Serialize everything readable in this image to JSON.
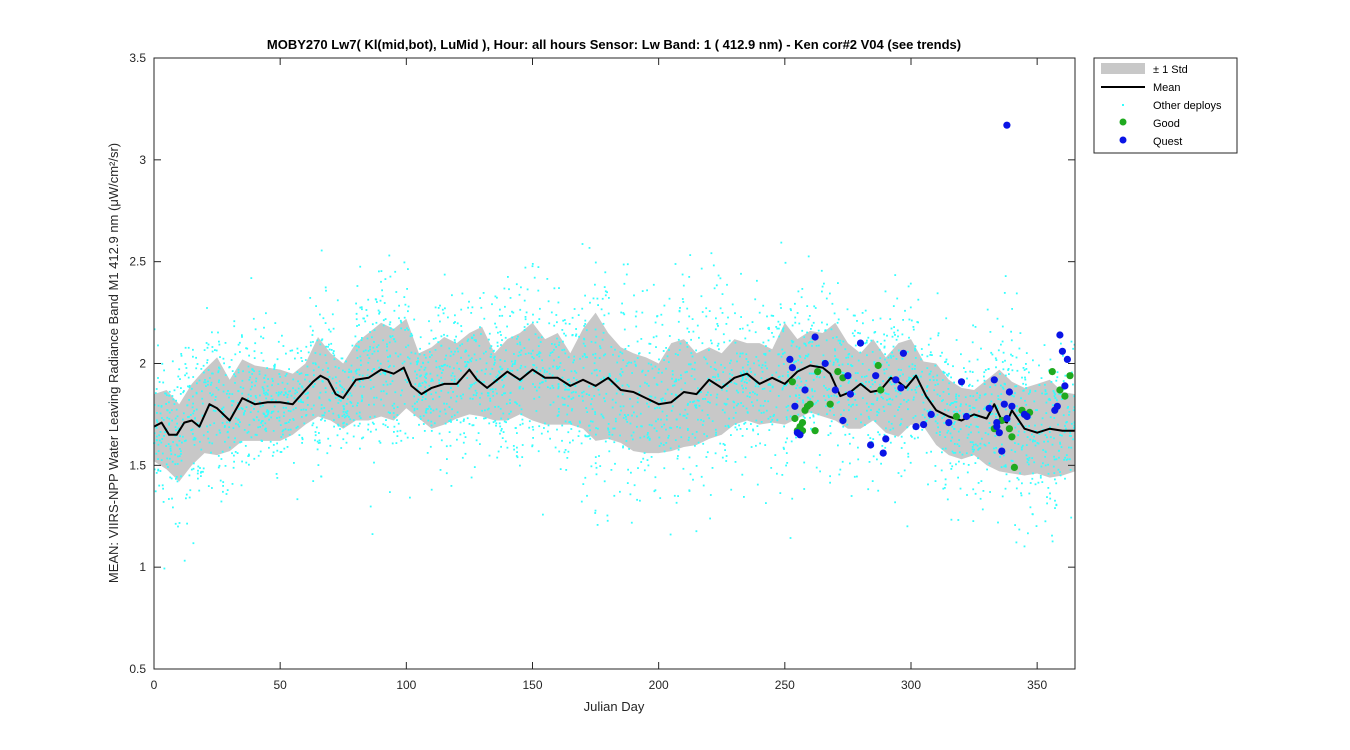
{
  "chart_data": {
    "type": "scatter",
    "title": "MOBY270   Lw7( Kl(mid,bot), LuMid ),   Hour: all hours  Sensor: Lw Band: 1 ( 412.9 nm)  - Ken cor#2 V04 (see trends)",
    "xlabel": "Julian Day",
    "ylabel": "MEAN: VIIRS-NPP Water Leaving Radiance Band M1 412.9 nm (μW/cm²/sr)",
    "xlim": [
      0,
      365
    ],
    "ylim": [
      0.5,
      3.5
    ],
    "x_ticks": [
      0,
      50,
      100,
      150,
      200,
      250,
      300,
      350
    ],
    "y_ticks": [
      0.5,
      1,
      1.5,
      2,
      2.5,
      3,
      3.5
    ],
    "y_tick_labels": [
      "0.5",
      "1",
      "1.5",
      "2",
      "2.5",
      "3",
      "3.5"
    ],
    "grid": false,
    "legend_position": "outside-top-right",
    "legend": [
      "± 1 Std",
      "Mean",
      "Other deploys",
      "Good",
      "Quest"
    ],
    "colors": {
      "std_band": "#c8c8c8",
      "mean": "#000000",
      "other": "#33ffff",
      "good": "#1faa1f",
      "quest": "#0a14e6"
    },
    "mean_curve": {
      "x": [
        0,
        3,
        6,
        9,
        12,
        15,
        18,
        22,
        25,
        30,
        35,
        40,
        45,
        50,
        55,
        60,
        63,
        66,
        69,
        72,
        75,
        80,
        85,
        90,
        95,
        99,
        102,
        106,
        110,
        115,
        120,
        125,
        128,
        132,
        136,
        140,
        145,
        150,
        155,
        160,
        165,
        170,
        175,
        180,
        185,
        190,
        195,
        200,
        205,
        210,
        215,
        220,
        225,
        230,
        235,
        240,
        245,
        250,
        255,
        260,
        265,
        268,
        272,
        276,
        280,
        284,
        288,
        292,
        295,
        298,
        302,
        306,
        310,
        315,
        320,
        325,
        330,
        333,
        336,
        338,
        340,
        345,
        350,
        355,
        360,
        365
      ],
      "y": [
        1.69,
        1.71,
        1.65,
        1.65,
        1.71,
        1.72,
        1.69,
        1.8,
        1.78,
        1.72,
        1.83,
        1.8,
        1.81,
        1.81,
        1.8,
        1.87,
        1.91,
        1.94,
        1.92,
        1.85,
        1.83,
        1.92,
        1.93,
        1.97,
        1.95,
        1.98,
        1.89,
        1.85,
        1.88,
        1.9,
        1.9,
        1.97,
        1.92,
        1.88,
        1.92,
        1.96,
        1.92,
        1.97,
        1.93,
        1.93,
        1.89,
        1.92,
        1.89,
        1.93,
        1.87,
        1.86,
        1.83,
        1.8,
        1.81,
        1.86,
        1.85,
        1.92,
        1.88,
        1.93,
        1.95,
        1.9,
        1.93,
        1.9,
        1.96,
        1.99,
        1.98,
        1.95,
        1.84,
        1.86,
        1.9,
        1.86,
        1.87,
        1.93,
        1.91,
        1.88,
        1.94,
        1.84,
        1.77,
        1.74,
        1.72,
        1.75,
        1.73,
        1.8,
        1.72,
        1.71,
        1.77,
        1.68,
        1.66,
        1.68,
        1.67,
        1.67
      ]
    },
    "std_band": {
      "x": [
        0,
        5,
        10,
        15,
        20,
        25,
        30,
        35,
        40,
        45,
        50,
        55,
        60,
        65,
        70,
        75,
        80,
        85,
        90,
        95,
        100,
        105,
        110,
        115,
        120,
        125,
        130,
        135,
        140,
        145,
        150,
        155,
        160,
        165,
        170,
        175,
        180,
        185,
        190,
        195,
        200,
        205,
        210,
        215,
        220,
        225,
        230,
        235,
        240,
        245,
        250,
        255,
        260,
        265,
        270,
        275,
        280,
        285,
        290,
        295,
        300,
        305,
        310,
        315,
        320,
        325,
        330,
        335,
        340,
        345,
        350,
        355,
        360,
        365
      ],
      "upper": [
        1.85,
        1.87,
        1.8,
        1.9,
        1.97,
        2.03,
        1.92,
        2.02,
        1.99,
        1.98,
        1.97,
        1.95,
        2.0,
        2.13,
        2.05,
        2.0,
        2.1,
        2.15,
        2.2,
        2.17,
        2.22,
        2.05,
        2.08,
        2.13,
        2.1,
        2.15,
        2.18,
        2.05,
        2.12,
        2.15,
        2.2,
        2.12,
        2.15,
        2.05,
        2.17,
        2.25,
        2.15,
        2.08,
        2.05,
        2.03,
        2.0,
        2.1,
        2.12,
        2.05,
        2.08,
        2.05,
        2.12,
        2.1,
        2.1,
        2.07,
        2.2,
        2.12,
        2.16,
        2.15,
        2.2,
        2.1,
        2.05,
        2.12,
        2.03,
        2.1,
        2.12,
        2.01,
        2.0,
        1.92,
        1.88,
        1.87,
        1.92,
        1.97,
        1.91,
        1.88,
        1.9,
        1.92,
        1.86,
        1.85
      ],
      "lower": [
        1.52,
        1.48,
        1.42,
        1.5,
        1.56,
        1.55,
        1.57,
        1.62,
        1.62,
        1.62,
        1.62,
        1.65,
        1.7,
        1.74,
        1.72,
        1.68,
        1.72,
        1.72,
        1.74,
        1.72,
        1.78,
        1.73,
        1.68,
        1.7,
        1.73,
        1.75,
        1.74,
        1.72,
        1.72,
        1.75,
        1.72,
        1.7,
        1.7,
        1.7,
        1.68,
        1.62,
        1.63,
        1.61,
        1.57,
        1.56,
        1.56,
        1.57,
        1.59,
        1.6,
        1.63,
        1.65,
        1.7,
        1.72,
        1.7,
        1.71,
        1.7,
        1.73,
        1.76,
        1.74,
        1.72,
        1.68,
        1.68,
        1.72,
        1.66,
        1.64,
        1.7,
        1.69,
        1.6,
        1.55,
        1.53,
        1.55,
        1.5,
        1.47,
        1.46,
        1.45,
        1.46,
        1.44,
        1.45,
        1.47
      ]
    },
    "good_points": {
      "x": [
        253,
        254,
        255,
        256,
        257,
        257,
        258,
        259,
        260,
        262,
        263,
        268,
        271,
        273,
        287,
        288,
        318,
        333,
        336,
        339,
        340,
        341,
        344,
        347,
        356,
        359,
        361,
        363
      ],
      "y": [
        1.91,
        1.73,
        1.67,
        1.69,
        1.67,
        1.71,
        1.77,
        1.79,
        1.8,
        1.67,
        1.96,
        1.8,
        1.96,
        1.93,
        1.99,
        1.87,
        1.74,
        1.68,
        1.72,
        1.68,
        1.64,
        1.49,
        1.77,
        1.76,
        1.96,
        1.87,
        1.84,
        1.94
      ]
    },
    "quest_points": {
      "x": [
        252,
        253,
        254,
        255,
        256,
        258,
        262,
        266,
        270,
        273,
        275,
        276,
        280,
        284,
        286,
        289,
        290,
        294,
        296,
        297,
        302,
        305,
        308,
        315,
        320,
        322,
        331,
        333,
        334,
        334,
        335,
        336,
        337,
        338,
        339,
        340,
        345,
        346,
        357,
        358,
        359,
        360,
        361,
        362,
        338
      ],
      "y": [
        2.02,
        1.98,
        1.79,
        1.66,
        1.65,
        1.87,
        2.13,
        2.0,
        1.87,
        1.72,
        1.94,
        1.85,
        2.1,
        1.6,
        1.94,
        1.56,
        1.63,
        1.92,
        1.88,
        2.05,
        1.69,
        1.7,
        1.75,
        1.71,
        1.91,
        1.74,
        1.78,
        1.92,
        1.69,
        1.71,
        1.66,
        1.57,
        1.8,
        1.73,
        1.86,
        1.79,
        1.75,
        1.74,
        1.77,
        1.79,
        2.14,
        2.06,
        1.89,
        2.02,
        3.17
      ]
    },
    "other_deploys_note_count": 3600
  }
}
